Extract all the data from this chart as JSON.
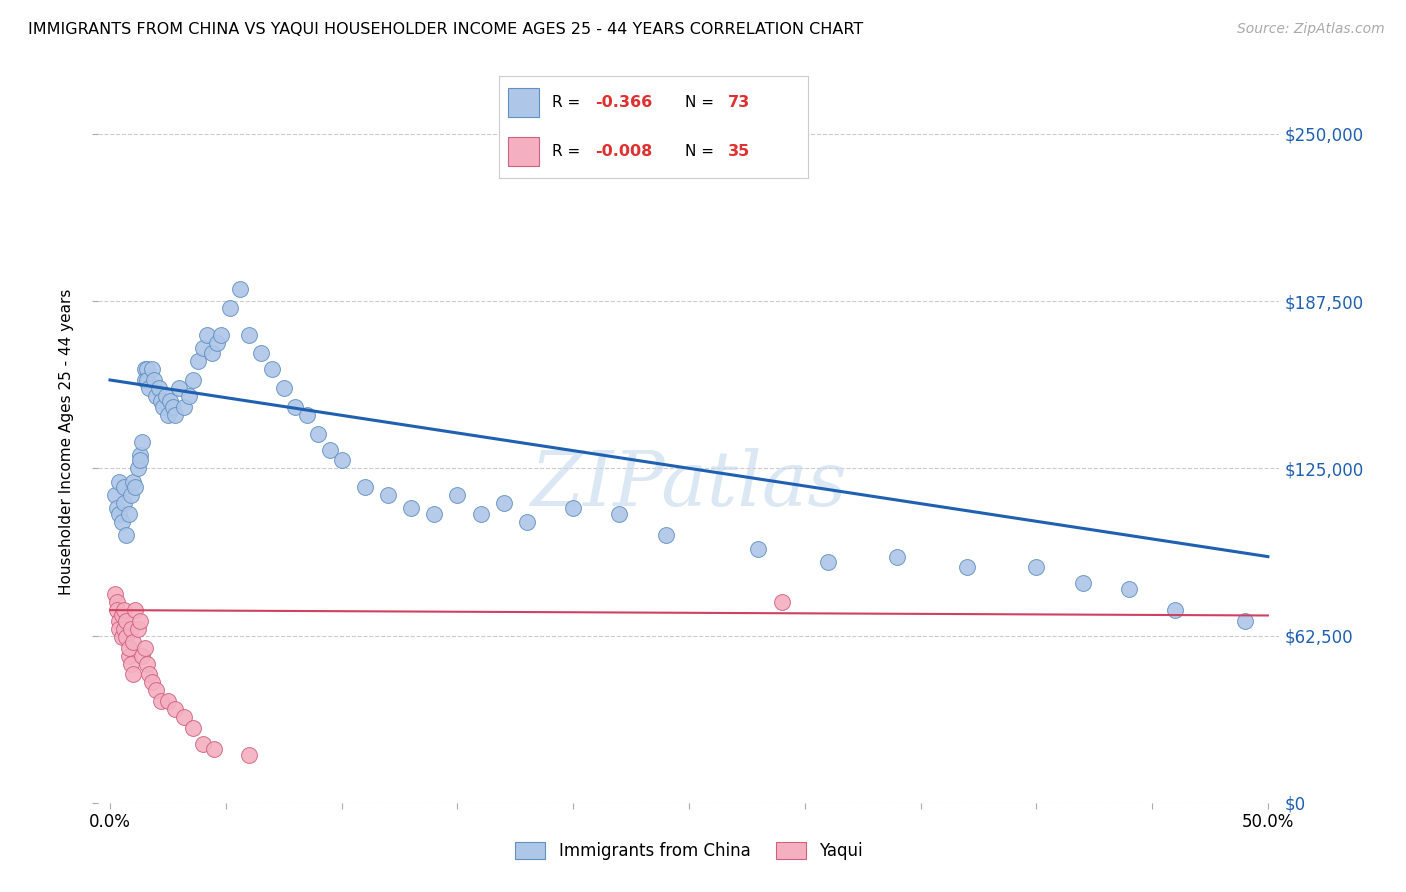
{
  "title": "IMMIGRANTS FROM CHINA VS YAQUI HOUSEHOLDER INCOME AGES 25 - 44 YEARS CORRELATION CHART",
  "source": "Source: ZipAtlas.com",
  "ylabel": "Householder Income Ages 25 - 44 years",
  "x_ticks": [
    0.0,
    0.05,
    0.1,
    0.15,
    0.2,
    0.25,
    0.3,
    0.35,
    0.4,
    0.45,
    0.5
  ],
  "y_ticks": [
    0,
    62500,
    125000,
    187500,
    250000
  ],
  "y_tick_labels": [
    "$0",
    "$62,500",
    "$125,000",
    "$187,500",
    "$250,000"
  ],
  "xlim": [
    -0.005,
    0.505
  ],
  "ylim": [
    0,
    270000
  ],
  "legend_labels": [
    "Immigrants from China",
    "Yaqui"
  ],
  "legend_r": [
    "-0.366",
    "-0.008"
  ],
  "legend_n": [
    "73",
    "35"
  ],
  "blue_color": "#aec6e8",
  "pink_color": "#f4afc0",
  "blue_edge_color": "#6090c0",
  "pink_edge_color": "#d06080",
  "blue_line_color": "#2060b0",
  "pink_line_color": "#d04060",
  "watermark": "ZIPatlas",
  "blue_x": [
    0.002,
    0.003,
    0.004,
    0.004,
    0.005,
    0.006,
    0.006,
    0.007,
    0.008,
    0.009,
    0.01,
    0.011,
    0.012,
    0.013,
    0.013,
    0.014,
    0.015,
    0.015,
    0.016,
    0.016,
    0.017,
    0.018,
    0.019,
    0.02,
    0.021,
    0.022,
    0.023,
    0.024,
    0.025,
    0.026,
    0.027,
    0.028,
    0.03,
    0.032,
    0.034,
    0.036,
    0.038,
    0.04,
    0.042,
    0.044,
    0.046,
    0.048,
    0.052,
    0.056,
    0.06,
    0.065,
    0.07,
    0.075,
    0.08,
    0.085,
    0.09,
    0.095,
    0.1,
    0.11,
    0.12,
    0.13,
    0.14,
    0.15,
    0.16,
    0.17,
    0.18,
    0.2,
    0.22,
    0.24,
    0.28,
    0.31,
    0.34,
    0.37,
    0.4,
    0.42,
    0.44,
    0.46,
    0.49
  ],
  "blue_y": [
    115000,
    110000,
    108000,
    120000,
    105000,
    112000,
    118000,
    100000,
    108000,
    115000,
    120000,
    118000,
    125000,
    130000,
    128000,
    135000,
    162000,
    158000,
    162000,
    158000,
    155000,
    162000,
    158000,
    152000,
    155000,
    150000,
    148000,
    152000,
    145000,
    150000,
    148000,
    145000,
    155000,
    148000,
    152000,
    158000,
    165000,
    170000,
    175000,
    168000,
    172000,
    175000,
    185000,
    192000,
    175000,
    168000,
    162000,
    155000,
    148000,
    145000,
    138000,
    132000,
    128000,
    118000,
    115000,
    110000,
    108000,
    115000,
    108000,
    112000,
    105000,
    110000,
    108000,
    100000,
    95000,
    90000,
    92000,
    88000,
    88000,
    82000,
    80000,
    72000,
    68000
  ],
  "pink_x": [
    0.002,
    0.003,
    0.003,
    0.004,
    0.004,
    0.005,
    0.005,
    0.006,
    0.006,
    0.007,
    0.007,
    0.008,
    0.008,
    0.009,
    0.009,
    0.01,
    0.01,
    0.011,
    0.012,
    0.013,
    0.014,
    0.015,
    0.016,
    0.017,
    0.018,
    0.02,
    0.022,
    0.025,
    0.028,
    0.032,
    0.036,
    0.04,
    0.045,
    0.06,
    0.29
  ],
  "pink_y": [
    78000,
    75000,
    72000,
    68000,
    65000,
    70000,
    62000,
    72000,
    65000,
    68000,
    62000,
    55000,
    58000,
    52000,
    65000,
    48000,
    60000,
    72000,
    65000,
    68000,
    55000,
    58000,
    52000,
    48000,
    45000,
    42000,
    38000,
    38000,
    35000,
    32000,
    28000,
    22000,
    20000,
    18000,
    75000
  ],
  "blue_trend_x0": 0.0,
  "blue_trend_y0": 158000,
  "blue_trend_x1": 0.5,
  "blue_trend_y1": 92000,
  "pink_trend_y": 72000
}
